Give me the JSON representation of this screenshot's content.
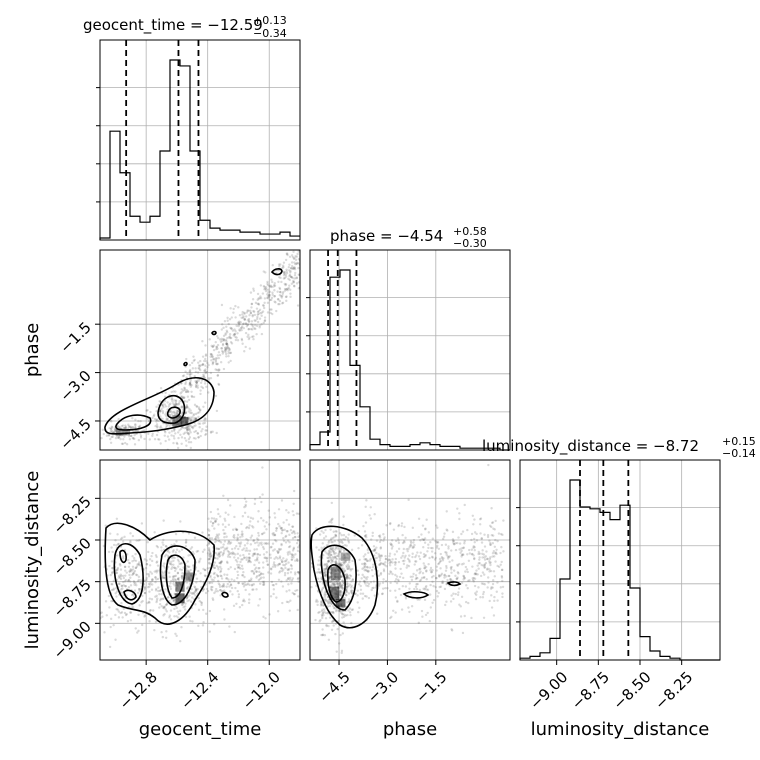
{
  "chart_data": {
    "type": "corner",
    "parameters": [
      "geocent_time",
      "phase",
      "luminosity_distance"
    ],
    "titles": [
      {
        "param": "geocent_time",
        "text": "geocent_time = −12.59",
        "plus": "+0.13",
        "minus": "−0.34"
      },
      {
        "param": "phase",
        "text": "phase = −4.54",
        "plus": "+0.58",
        "minus": "−0.30"
      },
      {
        "param": "luminosity_distance",
        "text": "luminosity_distance = −8.72",
        "plus": "+0.15",
        "minus": "−0.14"
      }
    ],
    "axis_labels": {
      "x": [
        "geocent_time",
        "phase",
        "luminosity_distance"
      ],
      "y": [
        "phase",
        "luminosity_distance"
      ]
    },
    "ranges": {
      "geocent_time": [
        -13.1,
        -11.8
      ],
      "phase": [
        -5.4,
        0.8
      ],
      "luminosity_distance": [
        -9.22,
        -8.02
      ]
    },
    "ticks": {
      "geocent_time": [
        -12.8,
        -12.4,
        -12.0
      ],
      "phase": [
        -4.5,
        -3.0,
        -1.5
      ],
      "luminosity_distance": [
        -9.0,
        -8.75,
        -8.5,
        -8.25
      ]
    },
    "tick_labels": {
      "geocent_time": [
        "−12.8",
        "−12.4",
        "−12.0"
      ],
      "phase": [
        "−4.5",
        "−3.0",
        "−1.5"
      ],
      "luminosity_distance": [
        "−9.00",
        "−8.75",
        "−8.50",
        "−8.25"
      ]
    },
    "quantiles": {
      "geocent_time": [
        -12.93,
        -12.59,
        -12.46
      ],
      "phase": [
        -4.84,
        -4.54,
        -3.96
      ],
      "luminosity_distance": [
        -8.86,
        -8.72,
        -8.57
      ]
    },
    "histograms": {
      "geocent_time": {
        "edges": [
          -13.1,
          -13.035,
          -12.97,
          -12.905,
          -12.84,
          -12.775,
          -12.71,
          -12.645,
          -12.58,
          -12.515,
          -12.45,
          -12.385,
          -12.32,
          -12.255,
          -12.19,
          -12.125,
          -12.06,
          -11.995,
          -11.93,
          -11.865,
          -11.8
        ],
        "counts": [
          1,
          55,
          34,
          12,
          9,
          12,
          45,
          91,
          88,
          45,
          10,
          6,
          5,
          5,
          4,
          4,
          3,
          3,
          4,
          2
        ]
      },
      "phase": {
        "edges": [
          -5.4,
          -5.09,
          -4.78,
          -4.47,
          -4.16,
          -3.85,
          -3.54,
          -3.23,
          -2.92,
          -2.61,
          -2.3,
          -1.99,
          -1.68,
          -1.37,
          -1.06,
          -0.75,
          -0.44,
          -0.13,
          0.18,
          0.49,
          0.8
        ],
        "counts": [
          3,
          10,
          96,
          100,
          47,
          24,
          6,
          3,
          2,
          2,
          3,
          4,
          3,
          2,
          2,
          1,
          1,
          1,
          1,
          0
        ]
      },
      "luminosity_distance": {
        "edges": [
          -9.22,
          -9.16,
          -9.1,
          -9.04,
          -8.98,
          -8.92,
          -8.86,
          -8.8,
          -8.74,
          -8.68,
          -8.62,
          -8.56,
          -8.5,
          -8.44,
          -8.38,
          -8.32,
          -8.26,
          -8.2,
          -8.14,
          -8.08,
          -8.02
        ],
        "counts": [
          1,
          2,
          4,
          12,
          45,
          100,
          85,
          84,
          82,
          78,
          86,
          40,
          13,
          5,
          2,
          1,
          0,
          0,
          0,
          0
        ]
      }
    },
    "scatter_trends": {
      "phase_vs_geocent_time": "positive linear correlation with dense cluster near (−12.55, −4.5) and (−12.95, −4.85)",
      "luminosity_distance_vs_geocent_time": "cluster near (−12.6, −8.75) spreading to −11.8",
      "luminosity_distance_vs_phase": "cluster near (−4.6, −8.75) with tail toward −1.5"
    },
    "grid": true
  }
}
